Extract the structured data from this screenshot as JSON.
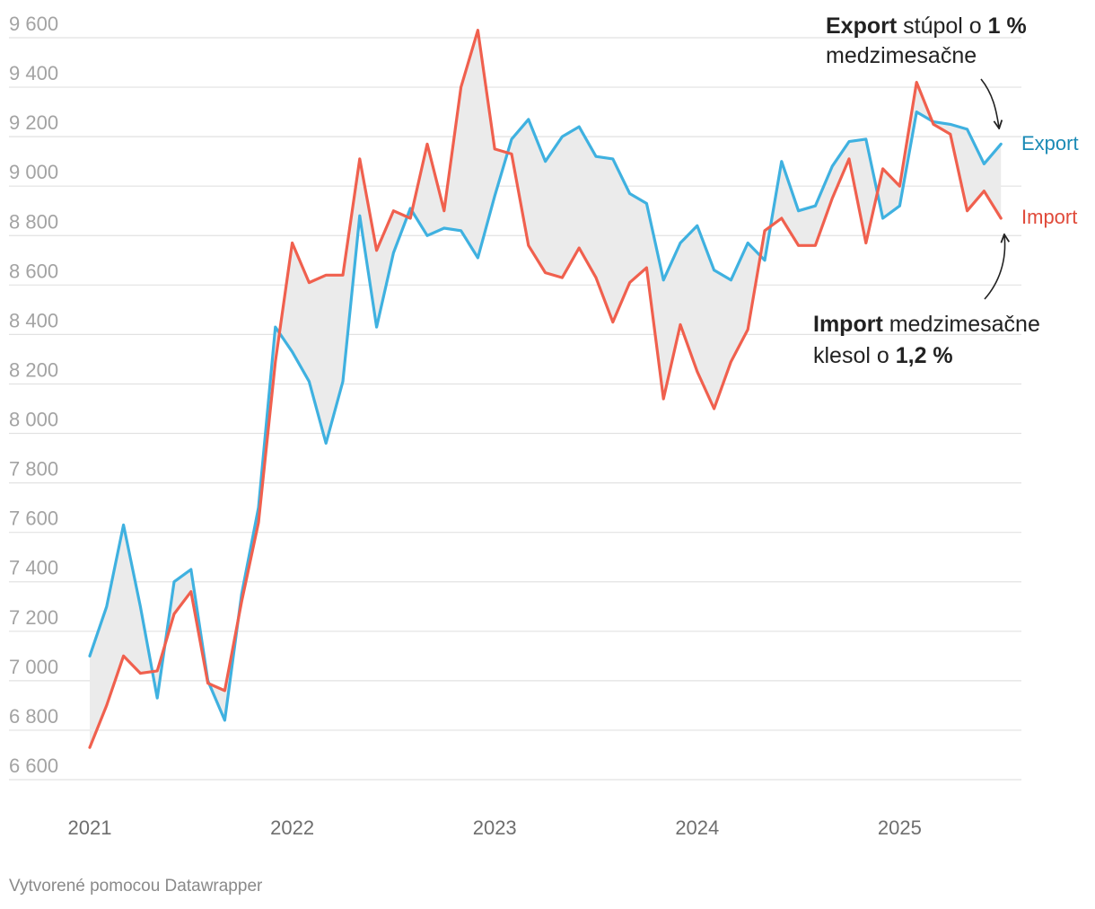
{
  "chart_data": {
    "type": "line",
    "x": [
      "2021-01",
      "2021-02",
      "2021-03",
      "2021-04",
      "2021-05",
      "2021-06",
      "2021-07",
      "2021-08",
      "2021-09",
      "2021-10",
      "2021-11",
      "2021-12",
      "2022-01",
      "2022-02",
      "2022-03",
      "2022-04",
      "2022-05",
      "2022-06",
      "2022-07",
      "2022-08",
      "2022-09",
      "2022-10",
      "2022-11",
      "2022-12",
      "2023-01",
      "2023-02",
      "2023-03",
      "2023-04",
      "2023-05",
      "2023-06",
      "2023-07",
      "2023-08",
      "2023-09",
      "2023-10",
      "2023-11",
      "2023-12",
      "2024-01",
      "2024-02",
      "2024-03",
      "2024-04",
      "2024-05",
      "2024-06",
      "2024-07",
      "2024-08",
      "2024-09",
      "2024-10",
      "2024-11",
      "2024-12",
      "2025-01",
      "2025-02",
      "2025-03",
      "2025-04",
      "2025-05",
      "2025-06",
      "2025-07"
    ],
    "series": [
      {
        "name": "Export",
        "color": "#3fb1e0",
        "values": [
          7100,
          7300,
          7630,
          7300,
          6930,
          7400,
          7450,
          7000,
          6840,
          7350,
          7700,
          8430,
          8330,
          8210,
          7960,
          8210,
          8880,
          8430,
          8730,
          8910,
          8800,
          8830,
          8820,
          8710,
          8960,
          9190,
          9270,
          9100,
          9200,
          9240,
          9120,
          9110,
          8970,
          8930,
          8620,
          8770,
          8840,
          8660,
          8620,
          8770,
          8700,
          9100,
          8900,
          8920,
          9080,
          9180,
          9190,
          8870,
          8920,
          9300,
          9260,
          9250,
          9230,
          9090,
          9170
        ]
      },
      {
        "name": "Import",
        "color": "#f0604e",
        "values": [
          6730,
          6900,
          7100,
          7030,
          7040,
          7270,
          7360,
          6990,
          6960,
          7320,
          7640,
          8290,
          8770,
          8610,
          8640,
          8640,
          9110,
          8740,
          8900,
          8870,
          9170,
          8900,
          9400,
          9630,
          9150,
          9130,
          8760,
          8650,
          8630,
          8750,
          8630,
          8450,
          8610,
          8670,
          8140,
          8440,
          8250,
          8100,
          8290,
          8420,
          8820,
          8870,
          8760,
          8760,
          8950,
          9110,
          8770,
          9070,
          9000,
          9420,
          9250,
          9210,
          8900,
          8980,
          8870
        ]
      }
    ],
    "ylim": [
      6600,
      9600
    ],
    "yticks": [
      "6 600",
      "6 800",
      "7 000",
      "7 200",
      "7 400",
      "7 600",
      "7 800",
      "8 000",
      "8 200",
      "8 400",
      "8 600",
      "8 800",
      "9 000",
      "9 200",
      "9 400",
      "9 600"
    ],
    "xticks": [
      "2021",
      "2022",
      "2023",
      "2024",
      "2025"
    ],
    "grid": true,
    "series_labels": {
      "export": "Export",
      "import": "Import"
    },
    "annotations": {
      "export": {
        "bold1": "Export",
        "text1": " stúpol o ",
        "bold2": "1 %",
        "line2": "medzimesačne"
      },
      "import": {
        "bold1": "Import",
        "text1": " medzimesačne",
        "line2a": "klesol o ",
        "bold2": "1,2 %"
      }
    }
  },
  "footer": "Vytvorené pomocou Datawrapper"
}
